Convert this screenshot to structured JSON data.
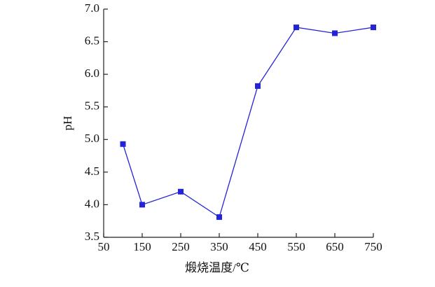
{
  "chart_data": {
    "type": "line",
    "x_label": "煅烧温度/℃",
    "y_label": "pH",
    "x": [
      100,
      150,
      250,
      350,
      450,
      550,
      650,
      750
    ],
    "series": [
      {
        "name": "pH",
        "color": "#2323d8",
        "values": [
          4.93,
          4.0,
          4.2,
          3.81,
          5.82,
          6.72,
          6.63,
          6.72
        ]
      }
    ],
    "xlim": [
      50,
      750
    ],
    "xticks": [
      50,
      150,
      250,
      350,
      450,
      550,
      650,
      750
    ],
    "ylim": [
      3.5,
      7.0
    ],
    "yticks": [
      3.5,
      {
        "value": 4.0,
        "label": "4.0"
      },
      4.5,
      {
        "value": 5.0,
        "label": "5.0"
      },
      5.5,
      {
        "value": 6.0,
        "label": "6.0"
      },
      6.5,
      {
        "value": 7.0,
        "label": "7.0"
      }
    ],
    "marker": "square"
  }
}
